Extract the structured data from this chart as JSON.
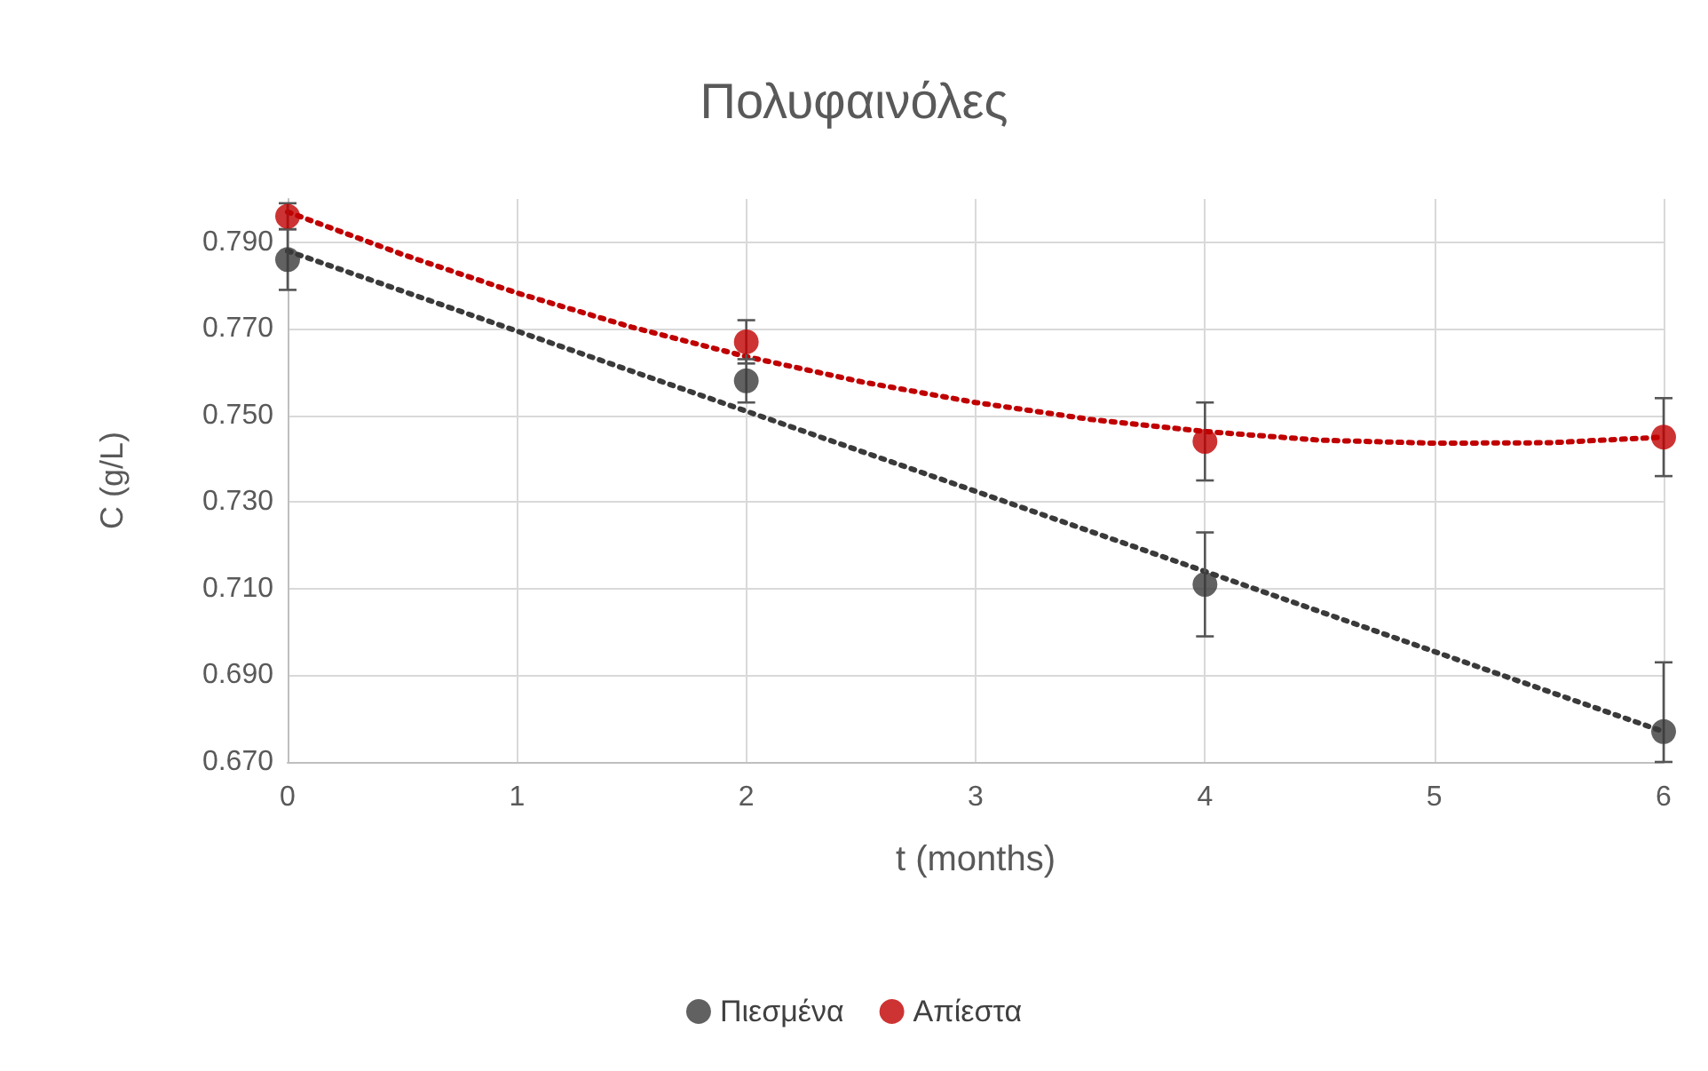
{
  "chart_data": {
    "type": "scatter",
    "title": "Πολυφαινόλες",
    "xlabel": "t (months)",
    "ylabel": "C (g/L)",
    "x": [
      0,
      2,
      4,
      6
    ],
    "series": [
      {
        "name": "Πιεσμένα",
        "color": "#3a3a3a",
        "values": [
          0.786,
          0.758,
          0.711,
          0.677
        ],
        "errors": [
          0.007,
          0.005,
          0.012,
          [
            0.67,
            0.693
          ]
        ],
        "marker": "circle"
      },
      {
        "name": "Απίεστα",
        "color": "#c00000",
        "values": [
          0.796,
          0.767,
          0.744,
          0.745
        ],
        "errors": [
          0.003,
          0.005,
          0.009,
          0.009
        ],
        "marker": "circle"
      },
      {
        "type": "line",
        "color": "#3a3a3a",
        "x": [
          0,
          6
        ],
        "values": [
          0.788,
          0.677
        ],
        "marker": "none",
        "line_style": "dotted"
      },
      {
        "type": "line",
        "color": "#c00000",
        "x": [
          0,
          0.5,
          1,
          1.5,
          2,
          2.5,
          3,
          3.5,
          4,
          4.5,
          5,
          5.5,
          6
        ],
        "values": [
          0.797,
          0.7872,
          0.7783,
          0.7704,
          0.7636,
          0.7578,
          0.753,
          0.7491,
          0.7463,
          0.7443,
          0.7436,
          0.7437,
          0.745
        ],
        "marker": "none",
        "line_style": "dotted"
      }
    ],
    "xlim": [
      0,
      6
    ],
    "xticks": [
      0,
      1,
      2,
      3,
      4,
      5,
      6
    ],
    "ylim": [
      0.67,
      0.8
    ],
    "yticks": [
      {
        "value": 0.67,
        "label": "0.670"
      },
      {
        "value": 0.69,
        "label": "0.690"
      },
      {
        "value": 0.71,
        "label": "0.710"
      },
      {
        "value": 0.73,
        "label": "0.730"
      },
      {
        "value": 0.75,
        "label": "0.750"
      },
      {
        "value": 0.77,
        "label": "0.770"
      },
      {
        "value": 0.79,
        "label": "0.790"
      }
    ],
    "grid": true,
    "legend": "bottom"
  }
}
